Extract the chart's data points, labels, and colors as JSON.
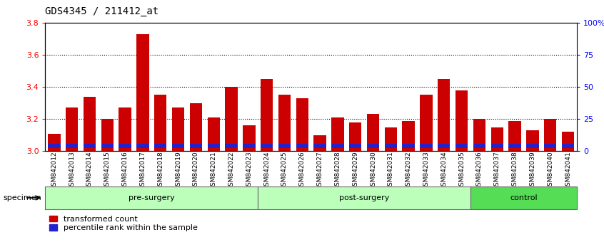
{
  "title": "GDS4345 / 211412_at",
  "samples": [
    "GSM842012",
    "GSM842013",
    "GSM842014",
    "GSM842015",
    "GSM842016",
    "GSM842017",
    "GSM842018",
    "GSM842019",
    "GSM842020",
    "GSM842021",
    "GSM842022",
    "GSM842023",
    "GSM842024",
    "GSM842025",
    "GSM842026",
    "GSM842027",
    "GSM842028",
    "GSM842029",
    "GSM842030",
    "GSM842031",
    "GSM842032",
    "GSM842033",
    "GSM842034",
    "GSM842035",
    "GSM842036",
    "GSM842037",
    "GSM842038",
    "GSM842039",
    "GSM842040",
    "GSM842041"
  ],
  "red_values": [
    3.11,
    3.27,
    3.34,
    3.2,
    3.27,
    3.73,
    3.35,
    3.27,
    3.3,
    3.21,
    3.4,
    3.16,
    3.45,
    3.35,
    3.33,
    3.1,
    3.21,
    3.18,
    3.23,
    3.15,
    3.19,
    3.35,
    3.45,
    3.38,
    3.2,
    3.15,
    3.19,
    3.13,
    3.2,
    3.12
  ],
  "groups": [
    {
      "label": "pre-surgery",
      "start": 0,
      "end": 12,
      "color": "#bbffbb"
    },
    {
      "label": "post-surgery",
      "start": 12,
      "end": 24,
      "color": "#bbffbb"
    },
    {
      "label": "control",
      "start": 24,
      "end": 30,
      "color": "#55dd55"
    }
  ],
  "ymin": 3.0,
  "ymax": 3.8,
  "yticks": [
    3.0,
    3.2,
    3.4,
    3.6,
    3.8
  ],
  "right_yticks": [
    0,
    25,
    50,
    75,
    100
  ],
  "right_ytick_labels": [
    "0",
    "25",
    "50",
    "75",
    "100%"
  ],
  "bar_color_red": "#cc0000",
  "bar_color_blue": "#2222cc",
  "bar_width": 0.7,
  "specimen_label": "specimen",
  "legend_labels": [
    "transformed count",
    "percentile rank within the sample"
  ]
}
